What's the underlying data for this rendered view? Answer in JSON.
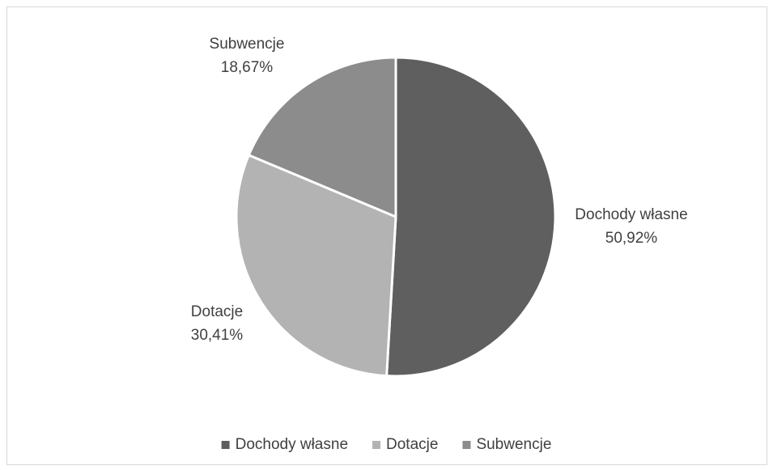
{
  "chart_data": {
    "type": "pie",
    "categories": [
      "Dochody własne",
      "Dotacje",
      "Subwencje"
    ],
    "values": [
      50.92,
      30.41,
      18.67
    ],
    "value_labels": [
      "50,92%",
      "30,41%",
      "18,67%"
    ],
    "colors": [
      "#5f5f5f",
      "#b3b3b3",
      "#8c8c8c"
    ],
    "legend": "bottom"
  }
}
